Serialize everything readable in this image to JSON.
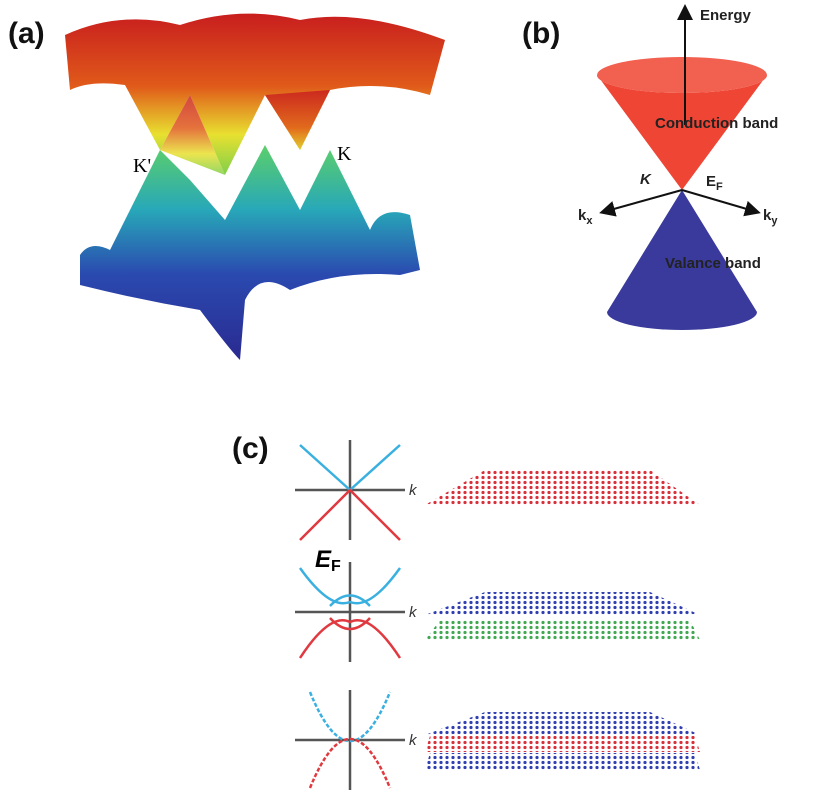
{
  "panel_a": {
    "label": "(a)",
    "points": [
      "K'",
      "K"
    ]
  },
  "panel_b": {
    "label": "(b)",
    "axis": "Energy",
    "upper": "Conduction band",
    "point": "K",
    "fermi": {
      "main": "E",
      "sub": "F"
    },
    "kx": {
      "main": "k",
      "sub": "x"
    },
    "ky": {
      "main": "k",
      "sub": "y"
    },
    "lower": "Valance band"
  },
  "panel_c": {
    "label": "(c)",
    "axes": [
      "k",
      "k",
      "k"
    ],
    "fermi": {
      "main": "E",
      "sub": "F"
    }
  }
}
